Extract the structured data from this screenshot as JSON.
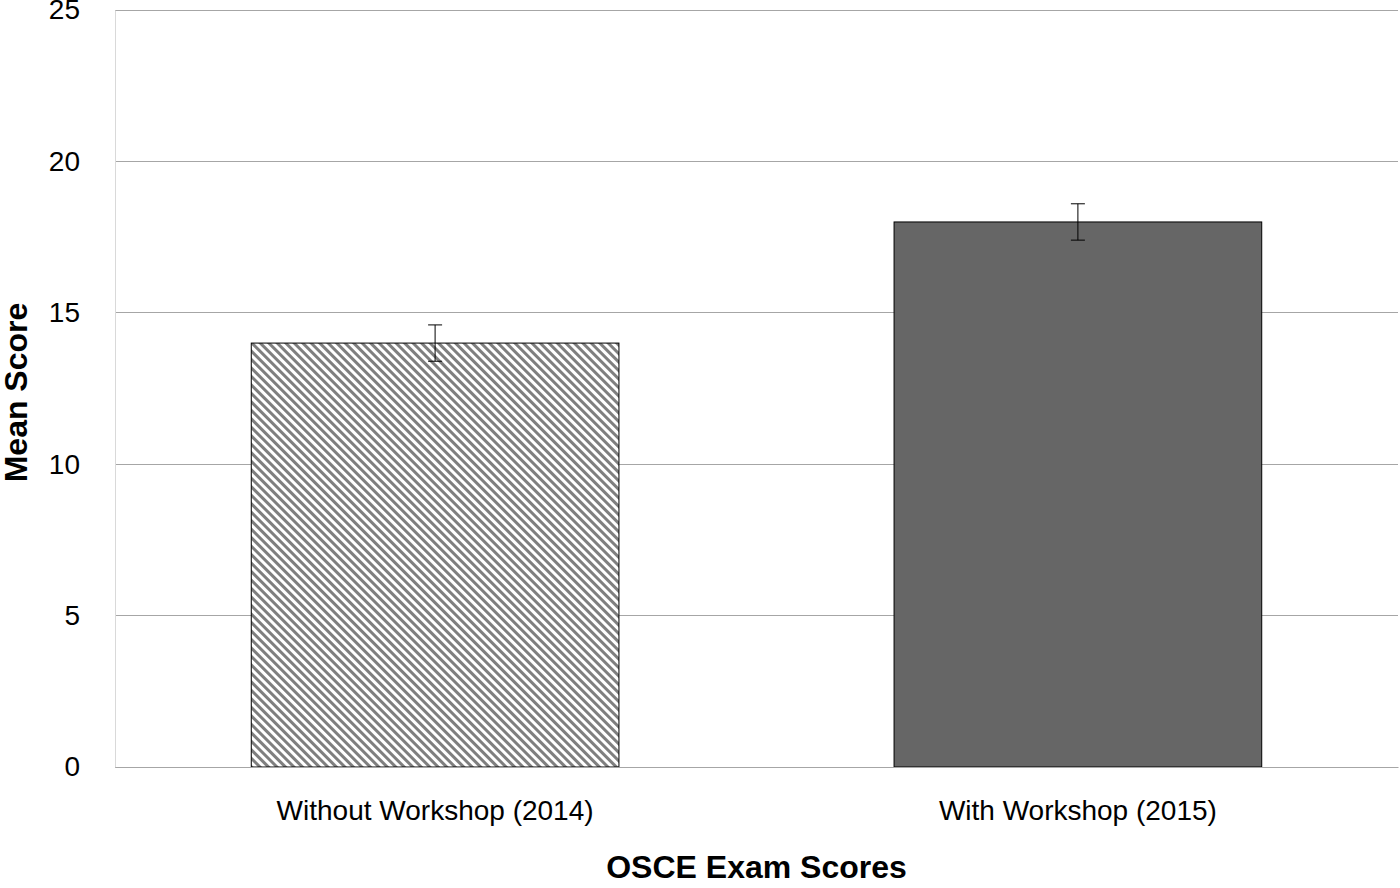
{
  "chart_data": {
    "type": "bar",
    "x_label": "OSCE Exam Scores",
    "y_label": "Mean Score",
    "categories": [
      "Without Workshop (2014)",
      "With Workshop (2015)"
    ],
    "values": [
      14,
      18
    ],
    "errors": [
      0.6,
      0.6
    ],
    "colors": [
      "#7f7f7f",
      "#666666"
    ],
    "ylim": [
      0,
      25
    ],
    "yticks": [
      0,
      5,
      10,
      15,
      20,
      25
    ],
    "grid": true
  }
}
